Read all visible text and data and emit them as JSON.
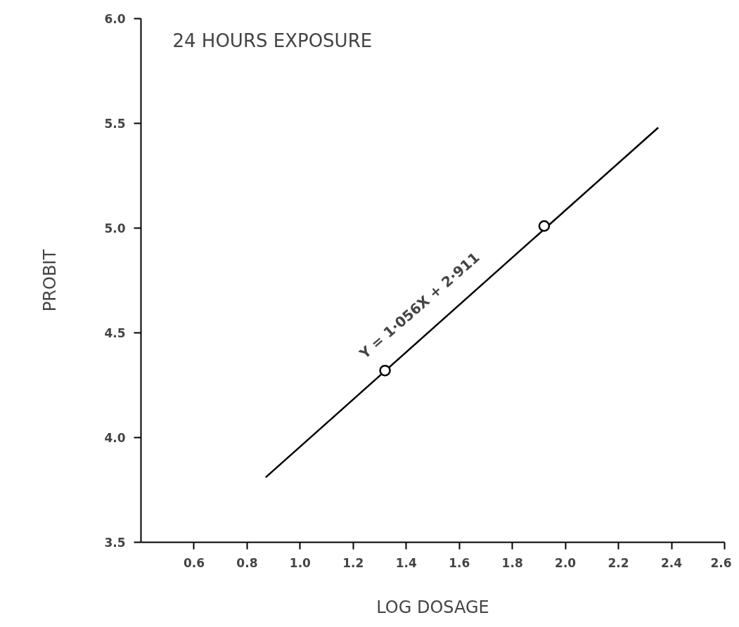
{
  "chart_data": {
    "type": "line",
    "title": "24 HOURS EXPOSURE",
    "xlabel": "LOG DOSAGE",
    "ylabel": "PROBIT",
    "xlim": [
      0.4,
      2.6
    ],
    "ylim": [
      3.5,
      6.0
    ],
    "xticks": [
      0.6,
      0.8,
      {
        "value": 1.0,
        "label": "1.0"
      },
      1.2,
      1.4,
      1.6,
      1.8,
      {
        "value": 2.0,
        "label": "2.0"
      },
      2.2,
      2.4,
      2.6
    ],
    "yticks": [
      3.5,
      {
        "value": 4.0,
        "label": "4.0"
      },
      4.5,
      {
        "value": 5.0,
        "label": "5.0"
      },
      5.5,
      {
        "value": 6.0,
        "label": "6.0"
      }
    ],
    "grid": false,
    "series": [
      {
        "color": "#000000",
        "x": [
          0.87,
          2.35
        ],
        "values": [
          3.81,
          5.48
        ],
        "marker": "none",
        "line_style": "solid"
      },
      {
        "type": "scatter",
        "color": "#000000",
        "x": [
          1.32,
          1.92
        ],
        "values": [
          4.32,
          5.01
        ],
        "marker": "circle"
      }
    ],
    "annotations": [
      "Y = 1·056X + 2·911"
    ]
  }
}
